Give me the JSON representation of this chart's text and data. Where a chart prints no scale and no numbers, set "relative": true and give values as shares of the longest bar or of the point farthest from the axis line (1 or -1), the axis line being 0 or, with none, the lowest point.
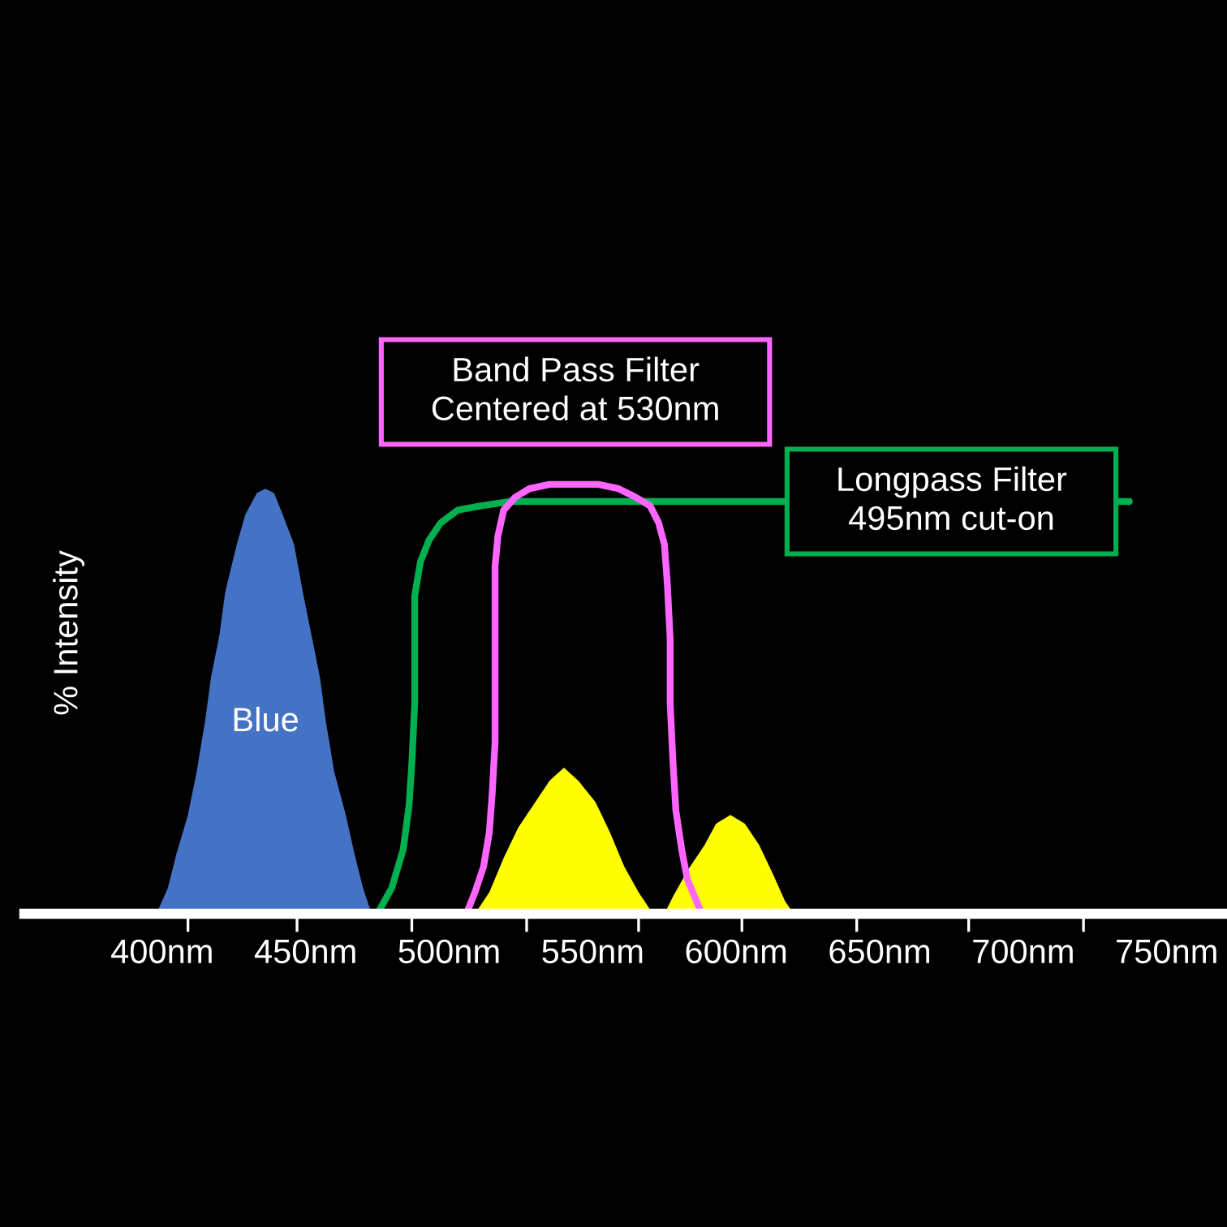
{
  "chart_data": {
    "type": "area",
    "relative": true,
    "ylabel": "% Intensity",
    "xlim": [
      352,
      771
    ],
    "xticks": [
      {
        "value": 400,
        "label": "400nm"
      },
      {
        "value": 409,
        "label": null
      },
      {
        "value": 447,
        "label": null
      },
      {
        "value": 450,
        "label": "450nm"
      },
      {
        "value": 487,
        "label": null
      },
      {
        "value": 500,
        "label": "500nm"
      },
      {
        "value": 527,
        "label": null
      },
      {
        "value": 550,
        "label": "550nm"
      },
      {
        "value": 566,
        "label": null
      },
      {
        "value": 600,
        "label": "600nm"
      },
      {
        "value": 602,
        "label": null
      },
      {
        "value": 642,
        "label": null
      },
      {
        "value": 650,
        "label": "650nm"
      },
      {
        "value": 681,
        "label": null
      },
      {
        "value": 700,
        "label": "700nm"
      },
      {
        "value": 721,
        "label": null
      },
      {
        "value": 750,
        "label": "750nm"
      }
    ],
    "series": [
      {
        "name": "Blue",
        "color": "#4472c4",
        "x": [
          398,
          402,
          405,
          409,
          412,
          415,
          417,
          420,
          422,
          426,
          429,
          433,
          436,
          439,
          442,
          446,
          449,
          452,
          455,
          457,
          460,
          464,
          467,
          470,
          473
        ],
        "values": [
          0,
          0.06,
          0.14,
          0.23,
          0.33,
          0.45,
          0.55,
          0.65,
          0.75,
          0.86,
          0.93,
          0.98,
          0.99,
          0.98,
          0.93,
          0.86,
          0.75,
          0.65,
          0.55,
          0.45,
          0.33,
          0.23,
          0.14,
          0.06,
          0
        ]
      },
      {
        "color": "#ffff00",
        "x": [
          509,
          514,
          519,
          524,
          530,
          535,
          540,
          545,
          551,
          556,
          561,
          566,
          571,
          575,
          578,
          583,
          589,
          593,
          598,
          603,
          608,
          613,
          617,
          620
        ],
        "values": [
          0,
          0.05,
          0.13,
          0.2,
          0.26,
          0.31,
          0.34,
          0.31,
          0.26,
          0.19,
          0.11,
          0.05,
          0,
          0,
          0.04,
          0.1,
          0.16,
          0.21,
          0.23,
          0.21,
          0.16,
          0.09,
          0.03,
          0
        ]
      },
      {
        "type": "line",
        "color": "#00b050",
        "x": [
          475,
          480,
          484,
          486,
          487,
          488,
          488,
          488,
          490,
          493,
          497,
          503,
          511,
          521,
          737
        ],
        "values": [
          0,
          0.06,
          0.15,
          0.25,
          0.35,
          0.49,
          0.62,
          0.74,
          0.82,
          0.87,
          0.91,
          0.94,
          0.95,
          0.96,
          0.96
        ]
      },
      {
        "type": "line",
        "color": "#ff66ff",
        "x": [
          506,
          509,
          512,
          514,
          515,
          516,
          516,
          516,
          516,
          517,
          519,
          523,
          528,
          535,
          544,
          552,
          559,
          565,
          570,
          573,
          575,
          576,
          577,
          577,
          578,
          579,
          581,
          583,
          588
        ],
        "values": [
          0,
          0.05,
          0.11,
          0.19,
          0.28,
          0.4,
          0.55,
          0.7,
          0.81,
          0.88,
          0.94,
          0.97,
          0.99,
          1.0,
          1.0,
          1.0,
          0.99,
          0.97,
          0.95,
          0.91,
          0.86,
          0.77,
          0.64,
          0.49,
          0.35,
          0.24,
          0.15,
          0.08,
          0
        ]
      }
    ],
    "annotations": [
      {
        "text": "Band Pass Filter\nCentered at 530nm",
        "x": 544,
        "y": 1.0
      },
      {
        "text": "Longpass Filter\n495nm cut-on",
        "x": 675,
        "y": 0.96
      }
    ]
  }
}
